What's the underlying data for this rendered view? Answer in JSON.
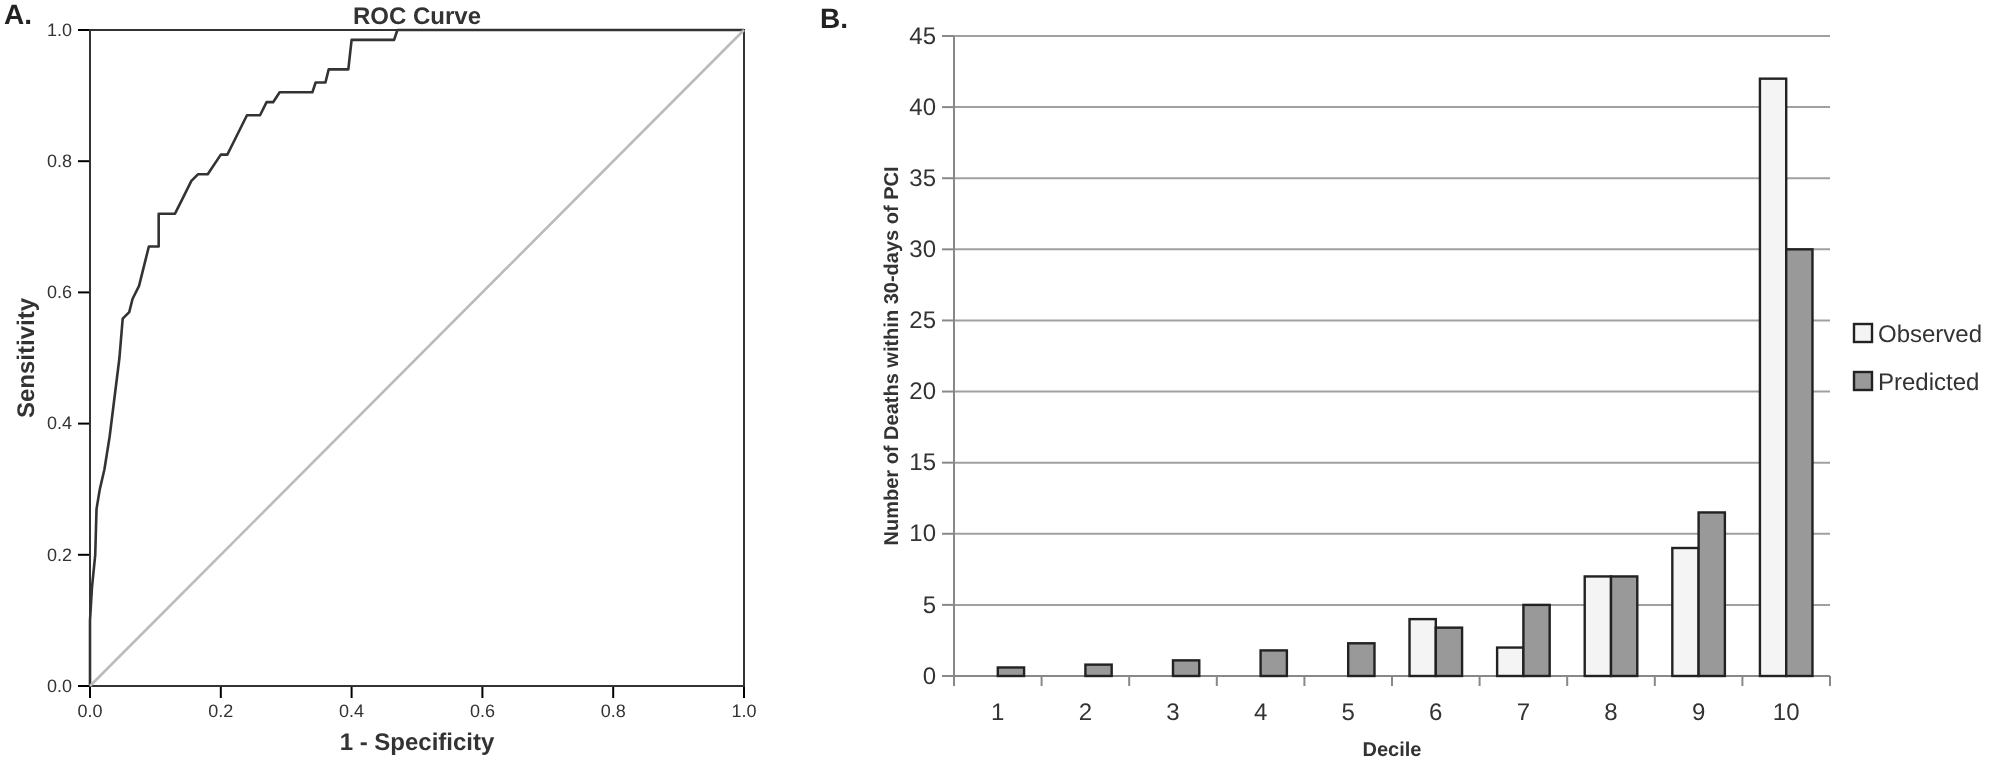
{
  "chart_data": [
    {
      "type": "line",
      "title": "ROC Curve",
      "xlabel": "1 - Specificity",
      "ylabel": "Sensitivity",
      "annotations": [
        "A."
      ],
      "xlim": [
        0,
        1
      ],
      "ylim": [
        0,
        1
      ],
      "xticks": [
        {
          "value": 0,
          "label": "0.0"
        },
        {
          "value": 0.2,
          "label": "0.2"
        },
        {
          "value": 0.4,
          "label": "0.4"
        },
        {
          "value": 0.6,
          "label": "0.6"
        },
        {
          "value": 0.8,
          "label": "0.8"
        },
        {
          "value": 1,
          "label": "1.0"
        }
      ],
      "yticks": [
        {
          "value": 0,
          "label": "0.0"
        },
        {
          "value": 0.2,
          "label": "0.2"
        },
        {
          "value": 0.4,
          "label": "0.4"
        },
        {
          "value": 0.6,
          "label": "0.6"
        },
        {
          "value": 0.8,
          "label": "0.8"
        },
        {
          "value": 1,
          "label": "1.0"
        }
      ],
      "grid": false,
      "legend": false,
      "series": [
        {
          "color": "#333333",
          "x": [
            0,
            0,
            0.003,
            0.008,
            0.01,
            0.015,
            0.022,
            0.03,
            0.035,
            0.045,
            0.05,
            0.06,
            0.065,
            0.075,
            0.085,
            0.09,
            0.105,
            0.105,
            0.13,
            0.14,
            0.155,
            0.165,
            0.18,
            0.2,
            0.21,
            0.22,
            0.24,
            0.26,
            0.27,
            0.28,
            0.29,
            0.34,
            0.345,
            0.36,
            0.365,
            0.395,
            0.4,
            0.465,
            0.47,
            1
          ],
          "values": [
            0,
            0.1,
            0.15,
            0.2,
            0.27,
            0.3,
            0.33,
            0.38,
            0.42,
            0.5,
            0.56,
            0.57,
            0.59,
            0.61,
            0.65,
            0.67,
            0.67,
            0.72,
            0.72,
            0.74,
            0.77,
            0.78,
            0.78,
            0.81,
            0.81,
            0.83,
            0.87,
            0.87,
            0.89,
            0.89,
            0.905,
            0.905,
            0.92,
            0.92,
            0.94,
            0.94,
            0.985,
            0.985,
            1,
            1
          ]
        },
        {
          "color": "#bbbbbb",
          "x": [
            0,
            1
          ],
          "values": [
            0,
            1
          ]
        }
      ]
    },
    {
      "type": "bar",
      "xlabel": "Decile",
      "ylabel": "Number of Deaths within 30-days of PCI",
      "annotations": [
        "B."
      ],
      "categories": [
        "1",
        "2",
        "3",
        "4",
        "5",
        "6",
        "7",
        "8",
        "9",
        "10"
      ],
      "ylim": [
        0,
        45
      ],
      "yticks": [
        0,
        5,
        10,
        15,
        20,
        25,
        30,
        35,
        40,
        45
      ],
      "grid": "y",
      "legend": "right",
      "series": [
        {
          "name": "Observed",
          "color": "#f4f4f4",
          "values": [
            0,
            0,
            0,
            0,
            0,
            4,
            2,
            7,
            9,
            42
          ]
        },
        {
          "name": "Predicted",
          "color": "#999999",
          "values": [
            0.6,
            0.8,
            1.1,
            1.8,
            2.3,
            3.4,
            5,
            7,
            11.5,
            30
          ]
        }
      ]
    }
  ]
}
